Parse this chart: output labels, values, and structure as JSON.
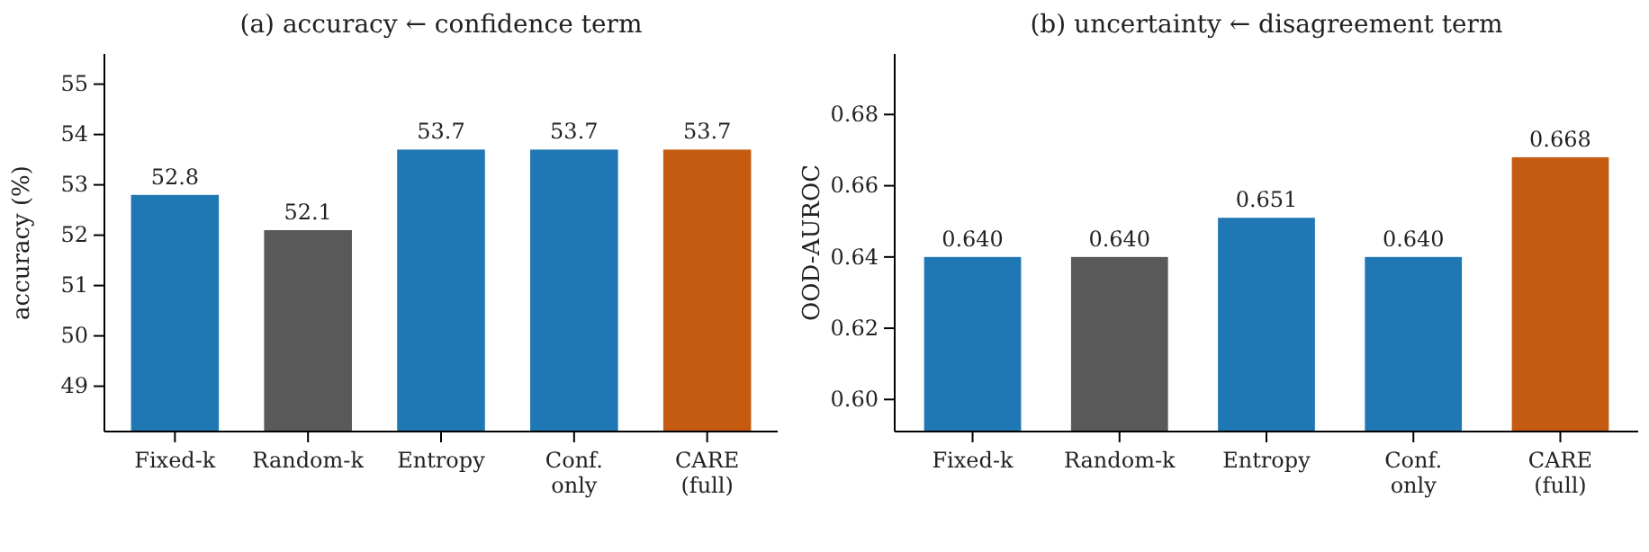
{
  "chart_data": [
    {
      "type": "bar",
      "title": "(a) accuracy ← confidence term",
      "ylabel": "accuracy (%)",
      "categories": [
        "Fixed-k",
        "Random-k",
        "Entropy",
        "Conf.\nonly",
        "CARE\n(full)"
      ],
      "values": [
        52.8,
        52.1,
        53.7,
        53.7,
        53.7
      ],
      "colors": [
        "#1f77b4",
        "#595959",
        "#1f77b4",
        "#1f77b4",
        "#c55a11"
      ],
      "ylim": [
        48.1,
        55.6
      ],
      "yticks": [
        49,
        50,
        51,
        52,
        53,
        54,
        55
      ],
      "data_labels": true,
      "grid": false
    },
    {
      "type": "bar",
      "title": "(b) uncertainty ← disagreement term",
      "ylabel": "OOD-AUROC",
      "categories": [
        "Fixed-k",
        "Random-k",
        "Entropy",
        "Conf.\nonly",
        "CARE\n(full)"
      ],
      "values": [
        0.64,
        0.64,
        0.651,
        0.64,
        0.668
      ],
      "value_labels": [
        "0.640",
        "0.640",
        "0.651",
        "0.640",
        "0.668"
      ],
      "colors": [
        "#1f77b4",
        "#595959",
        "#1f77b4",
        "#1f77b4",
        "#c55a11"
      ],
      "ylim": [
        0.591,
        0.697
      ],
      "yticks": [
        {
          "value": 0.6,
          "label": "0.60"
        },
        {
          "value": 0.62,
          "label": "0.62"
        },
        {
          "value": 0.64,
          "label": "0.64"
        },
        {
          "value": 0.66,
          "label": "0.66"
        },
        {
          "value": 0.68,
          "label": "0.68"
        }
      ],
      "grid": false
    }
  ]
}
